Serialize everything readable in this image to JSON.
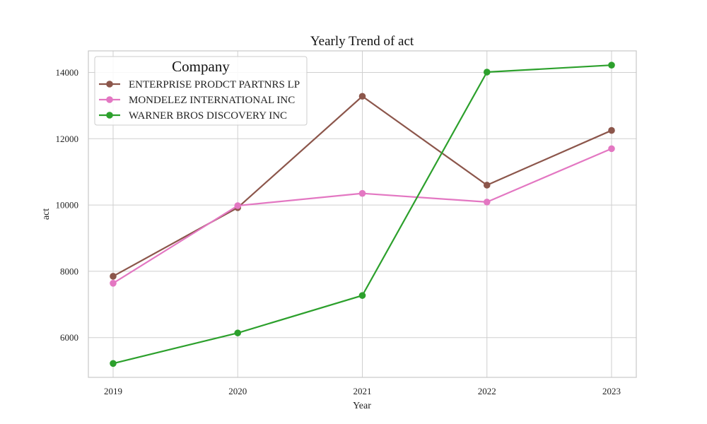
{
  "chart_data": {
    "type": "line",
    "title": "Yearly Trend of act",
    "xlabel": "Year",
    "ylabel": "act",
    "x": [
      "2019",
      "2020",
      "2021",
      "2022",
      "2023"
    ],
    "ylim": [
      4800,
      14650
    ],
    "yticks": [
      "6000",
      "8000",
      "10000",
      "12000",
      "14000"
    ],
    "grid": true,
    "legend": {
      "title": "Company",
      "placement": "top-left"
    },
    "series": [
      {
        "name": "ENTERPRISE PRODCT PARTNRS LP",
        "color": "#8c564b",
        "values": [
          7850,
          9920,
          13280,
          10600,
          12250
        ]
      },
      {
        "name": "MONDELEZ INTERNATIONAL INC",
        "color": "#e377c2",
        "values": [
          7640,
          9980,
          10350,
          10090,
          11700
        ]
      },
      {
        "name": "WARNER BROS DISCOVERY INC",
        "color": "#2ca02c",
        "values": [
          5220,
          6140,
          7270,
          14010,
          14220
        ]
      }
    ]
  }
}
